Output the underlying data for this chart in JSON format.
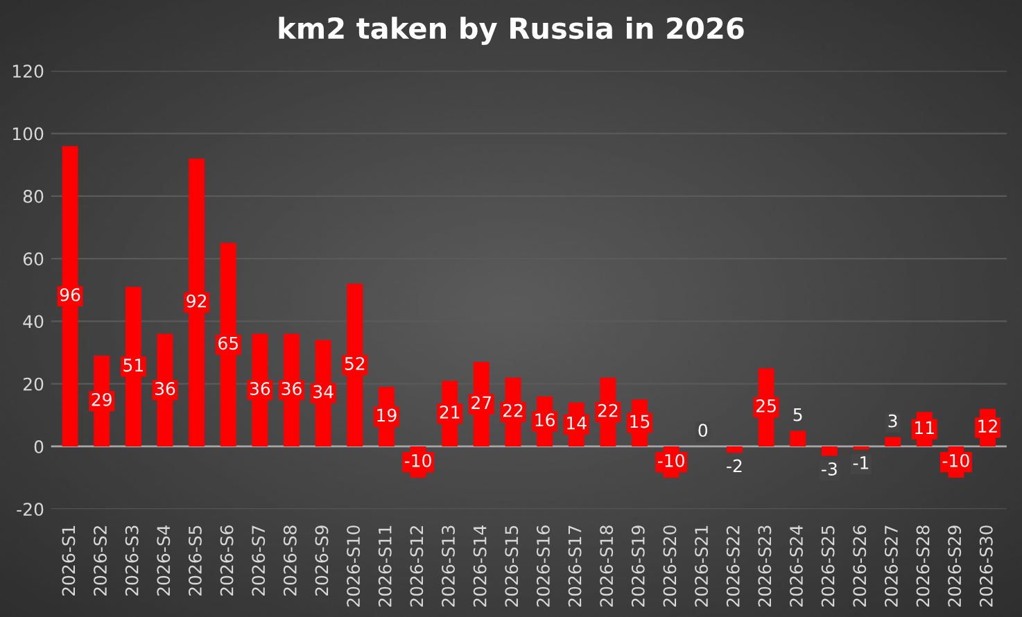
{
  "chart_data": {
    "type": "bar",
    "title": "km2 taken by Russia in 2026",
    "categories": [
      "2026-S1",
      "2026-S2",
      "2026-S3",
      "2026-S4",
      "2026-S5",
      "2026-S6",
      "2026-S7",
      "2026-S8",
      "2026-S9",
      "2026-S10",
      "2026-S11",
      "2026-S12",
      "2026-S13",
      "2026-S14",
      "2026-S15",
      "2026-S16",
      "2026-S17",
      "2026-S18",
      "2026-S19",
      "2026-S20",
      "2026-S21",
      "2026-S22",
      "2026-S23",
      "2026-S24",
      "2026-S25",
      "2026-S26",
      "2026-S27",
      "2026-S28",
      "2026-S29",
      "2026-S30"
    ],
    "values": [
      96,
      29,
      51,
      36,
      92,
      65,
      36,
      36,
      34,
      52,
      19,
      -10,
      21,
      27,
      22,
      16,
      14,
      22,
      15,
      -10,
      0,
      -2,
      25,
      5,
      -3,
      -1,
      3,
      11,
      -10,
      12
    ],
    "color": "#ff0000",
    "data_labels": true,
    "ylim": [
      -20,
      120
    ],
    "yticks": [
      -20,
      0,
      20,
      40,
      60,
      80,
      100,
      120
    ],
    "grid": "y"
  }
}
